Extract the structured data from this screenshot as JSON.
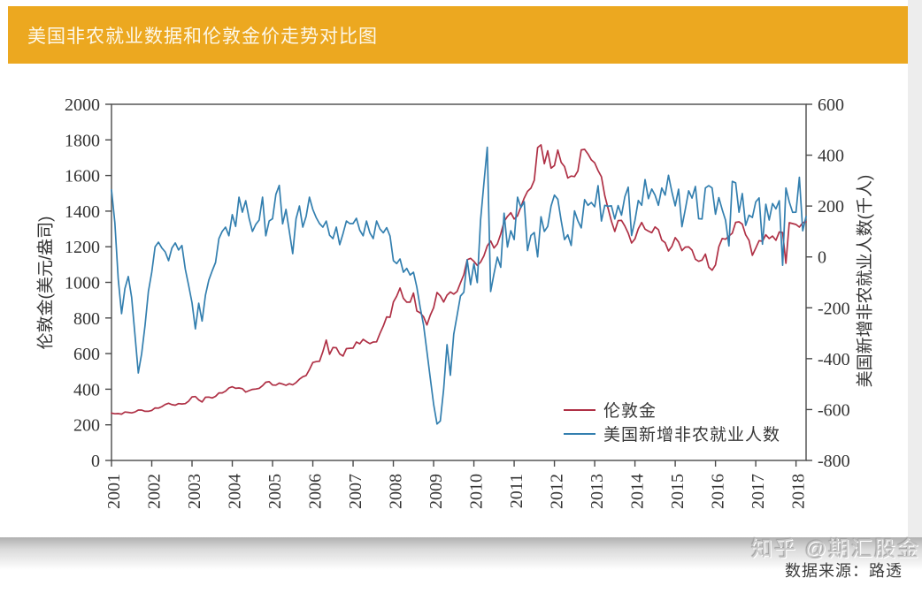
{
  "page": {
    "title": "美国非农就业数据和伦敦金价走势对比图",
    "source": "数据来源：路透",
    "watermark": "知乎 @期汇股金"
  },
  "colors": {
    "header_bg": "#ECA820",
    "title_text": "#FDF8EA",
    "gold_line": "#AF3045",
    "nfp_line": "#337FAF",
    "axis": "#4a4a4a"
  },
  "chart_data": {
    "type": "line",
    "title": "美国非农就业数据和伦敦金价走势对比图",
    "frequency": "monthly",
    "x_start": "2001-01",
    "x_end": "2018-04",
    "grid": false,
    "x_tick_labels": [
      "2001",
      "2002",
      "2003",
      "2004",
      "2005",
      "2006",
      "2007",
      "2008",
      "2009",
      "2010",
      "2011",
      "2012",
      "2013",
      "2014",
      "2015",
      "2016",
      "2017",
      "2018"
    ],
    "left_axis": {
      "label": "伦敦金(美元/盎司)",
      "range": [
        0,
        2000
      ],
      "ticks": [
        0,
        200,
        400,
        600,
        800,
        1000,
        1200,
        1400,
        1600,
        1800,
        2000
      ]
    },
    "right_axis": {
      "label": "美国新增非农就业人数(千人)",
      "range": [
        -800,
        600
      ],
      "ticks": [
        -800,
        -600,
        -400,
        -200,
        0,
        200,
        400,
        600
      ]
    },
    "legend": {
      "position": "lower right",
      "entries": [
        {
          "label": "伦敦金",
          "color": "#AF3045"
        },
        {
          "label": "美国新增非农就业人数",
          "color": "#337FAF"
        }
      ]
    },
    "series": [
      {
        "name": "伦敦金",
        "axis": "left",
        "color": "#AF3045",
        "values": [
          266,
          262,
          263,
          260,
          272,
          270,
          267,
          272,
          283,
          283,
          276,
          276,
          281,
          295,
          294,
          302,
          314,
          321,
          313,
          310,
          319,
          317,
          319,
          333,
          357,
          359,
          340,
          328,
          355,
          356,
          351,
          360,
          379,
          379,
          389,
          407,
          414,
          405,
          407,
          403,
          384,
          392,
          399,
          401,
          405,
          420,
          439,
          442,
          424,
          423,
          434,
          429,
          422,
          431,
          425,
          437,
          456,
          470,
          477,
          510,
          550,
          555,
          557,
          611,
          676,
          596,
          634,
          633,
          598,
          586,
          628,
          630,
          631,
          665,
          655,
          680,
          667,
          656,
          665,
          666,
          713,
          755,
          806,
          804,
          890,
          922,
          968,
          910,
          889,
          889,
          940,
          839,
          829,
          807,
          761,
          816,
          858,
          943,
          924,
          890,
          928,
          946,
          934,
          949,
          997,
          1043,
          1127,
          1135,
          1118,
          1095,
          1113,
          1149,
          1205,
          1233,
          1193,
          1216,
          1271,
          1342,
          1370,
          1391,
          1356,
          1374,
          1424,
          1473,
          1511,
          1529,
          1573,
          1757,
          1772,
          1666,
          1739,
          1641,
          1656,
          1743,
          1674,
          1650,
          1586,
          1597,
          1594,
          1626,
          1744,
          1747,
          1721,
          1688,
          1671,
          1628,
          1593,
          1487,
          1414,
          1343,
          1286,
          1347,
          1348,
          1316,
          1276,
          1221,
          1244,
          1301,
          1336,
          1299,
          1288,
          1279,
          1311,
          1296,
          1237,
          1223,
          1176,
          1202,
          1251,
          1227,
          1178,
          1198,
          1199,
          1181,
          1130,
          1118,
          1125,
          1159,
          1086,
          1068,
          1098,
          1200,
          1246,
          1242,
          1260,
          1276,
          1337,
          1340,
          1327,
          1267,
          1236,
          1152,
          1192,
          1234,
          1231,
          1267,
          1246,
          1260,
          1236,
          1283,
          1280,
          1107,
          1335,
          1330,
          1325,
          1310,
          1335,
          1340
        ]
      },
      {
        "name": "美国新增非农就业人数",
        "axis": "right",
        "color": "#337FAF",
        "values": [
          264,
          135,
          -86,
          -223,
          -124,
          -77,
          -160,
          -305,
          -456,
          -380,
          -270,
          -136,
          -60,
          40,
          58,
          35,
          20,
          -15,
          35,
          55,
          27,
          45,
          -48,
          -112,
          -180,
          -283,
          -182,
          -252,
          -150,
          -91,
          -55,
          -22,
          72,
          100,
          117,
          83,
          166,
          120,
          235,
          176,
          221,
          152,
          100,
          128,
          145,
          235,
          83,
          141,
          150,
          246,
          281,
          130,
          187,
          100,
          13,
          150,
          200,
          117,
          160,
          235,
          187,
          155,
          131,
          117,
          141,
          85,
          72,
          117,
          48,
          92,
          141,
          131,
          131,
          152,
          105,
          83,
          141,
          95,
          72,
          141,
          110,
          95,
          115,
          82,
          -15,
          -26,
          -8,
          -60,
          -45,
          -71,
          -60,
          -119,
          -199,
          -268,
          -372,
          -477,
          -580,
          -657,
          -645,
          -520,
          -345,
          -465,
          -304,
          -230,
          -154,
          -139,
          -11,
          -109,
          -26,
          -101,
          144,
          290,
          431,
          -136,
          -66,
          -1,
          -41,
          172,
          39,
          103,
          68,
          235,
          194,
          217,
          25,
          84,
          96,
          0,
          158,
          100,
          120,
          200,
          243,
          227,
          143,
          68,
          87,
          45,
          181,
          142,
          114,
          225,
          203,
          214,
          197,
          280,
          141,
          203,
          199,
          201,
          149,
          202,
          164,
          237,
          274,
          84,
          144,
          222,
          203,
          304,
          229,
          267,
          243,
          203,
          271,
          243,
          321,
          256,
          201,
          266,
          119,
          187,
          260,
          231,
          277,
          150,
          149,
          271,
          280,
          271,
          168,
          233,
          186,
          144,
          43,
          297,
          291,
          176,
          249,
          124,
          164,
          155,
          216,
          232,
          50,
          207,
          145,
          210,
          189,
          221,
          -33,
          271,
          216,
          175,
          176,
          313,
          103,
          159
        ]
      }
    ]
  }
}
